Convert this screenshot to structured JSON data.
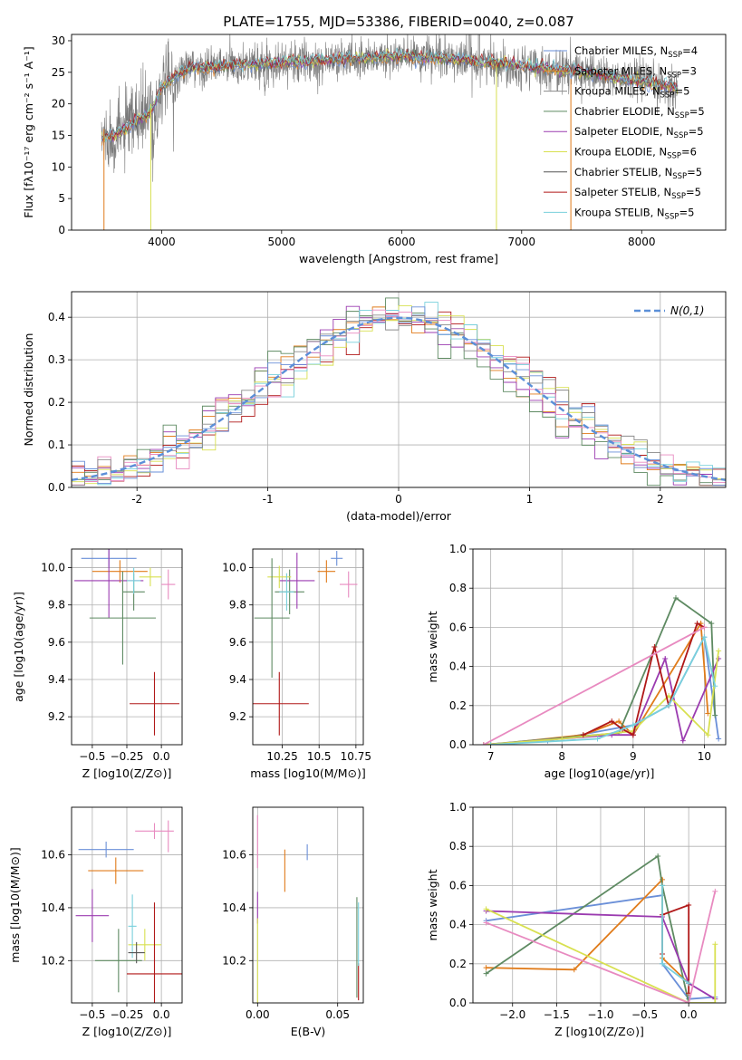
{
  "figure": {
    "title": "PLATE=1755, MJD=53386, FIBERID=0040, z=0.087"
  },
  "palette": [
    "#6a8fd8",
    "#e07b1a",
    "#8a8a8a",
    "#5e8a62",
    "#9b3bb0",
    "#d8e050",
    "#555555",
    "#b01818",
    "#78d0dc",
    "#e88ac0"
  ],
  "chart_data": [
    {
      "id": "spectrum",
      "type": "line",
      "xlabel": "wavelength [Angstrom, rest frame]",
      "ylabel": "Flux [fλ10⁻¹⁷ erg cm⁻² s⁻¹ A⁻¹]",
      "xlim": [
        3250,
        8700
      ],
      "ylim": [
        0,
        31
      ],
      "xticks": [
        4000,
        5000,
        6000,
        7000,
        8000
      ],
      "yticks": [
        0,
        5,
        10,
        15,
        20,
        25,
        30
      ],
      "continuum": {
        "x": [
          3500,
          3600,
          3700,
          3800,
          3900,
          4000,
          4200,
          4500,
          5000,
          5500,
          6000,
          6500,
          7000,
          7500,
          8000,
          8300
        ],
        "y": [
          14.5,
          15.0,
          16.0,
          17.5,
          18.5,
          22.5,
          25.5,
          26.0,
          26.5,
          27.0,
          27.5,
          27.0,
          26.0,
          25.0,
          23.5,
          22.5
        ]
      },
      "legend": [
        {
          "name": "Chabrier MILES, N_SSP=4",
          "color": "#6a8fd8"
        },
        {
          "name": "Salpeter MILES, N_SSP=3",
          "color": "#e07b1a"
        },
        {
          "name": "Kroupa MILES, N_SSP=5",
          "color": "#8a8a8a"
        },
        {
          "name": "Chabrier ELODIE, N_SSP=5",
          "color": "#5e8a62"
        },
        {
          "name": "Salpeter ELODIE, N_SSP=5",
          "color": "#9b3bb0"
        },
        {
          "name": "Kroupa ELODIE, N_SSP=6",
          "color": "#d8e050"
        },
        {
          "name": "Chabrier STELIB, N_SSP=5",
          "color": "#555555"
        },
        {
          "name": "Salpeter STELIB, N_SSP=5",
          "color": "#b01818"
        },
        {
          "name": "Kroupa STELIB, N_SSP=5",
          "color": "#78d0dc"
        }
      ]
    },
    {
      "id": "residuals",
      "type": "histogram",
      "xlabel": "(data-model)/error",
      "ylabel": "Normed distribution",
      "xlim": [
        -2.5,
        2.5
      ],
      "ylim": [
        0,
        0.46
      ],
      "xticks": [
        -2,
        -1,
        0,
        1,
        2
      ],
      "yticks": [
        0.0,
        0.1,
        0.2,
        0.3,
        0.4
      ],
      "bin_width": 0.1,
      "gaussian": {
        "mu": 0,
        "sigma": 1,
        "label": "N(0,1)",
        "color": "#5b8fd8"
      }
    },
    {
      "id": "age-vs-z",
      "type": "errorbar",
      "xlabel": "Z [log10(Z/Z⊙)]",
      "ylabel": "age  [log10(age/yr)]",
      "xlim": [
        -0.65,
        0.15
      ],
      "ylim": [
        9.05,
        10.1
      ],
      "xticks": [
        -0.5,
        -0.25,
        0.0
      ],
      "xticklabels": [
        "−0.5",
        "−0.25",
        "0.0"
      ],
      "yticks": [
        9.2,
        9.4,
        9.6,
        9.8,
        10.0
      ],
      "points": [
        {
          "x": -0.38,
          "xerr": 0.2,
          "y": 10.05,
          "yerr": 0.05,
          "c": "#6a8fd8"
        },
        {
          "x": -0.3,
          "xerr": 0.2,
          "y": 9.98,
          "yerr": 0.06,
          "c": "#e07b1a"
        },
        {
          "x": -0.2,
          "xerr": 0.08,
          "y": 9.87,
          "yerr": 0.1,
          "c": "#5e8a62"
        },
        {
          "x": -0.38,
          "xerr": 0.25,
          "y": 9.93,
          "yerr": 0.2,
          "c": "#9b3bb0"
        },
        {
          "x": -0.08,
          "xerr": 0.08,
          "y": 9.95,
          "yerr": 0.05,
          "c": "#d8e050"
        },
        {
          "x": -0.28,
          "xerr": 0.24,
          "y": 9.73,
          "yerr": 0.25,
          "c": "#5e8a62"
        },
        {
          "x": -0.05,
          "xerr": 0.18,
          "y": 9.27,
          "yerr": 0.17,
          "c": "#b01818"
        },
        {
          "x": -0.2,
          "xerr": 0.05,
          "y": 9.93,
          "yerr": 0.07,
          "c": "#78d0dc"
        },
        {
          "x": 0.05,
          "xerr": 0.05,
          "y": 9.91,
          "yerr": 0.08,
          "c": "#e88ac0"
        }
      ]
    },
    {
      "id": "age-vs-mass",
      "type": "errorbar",
      "xlabel": "mass [log10(M/M⊙)]",
      "xlim": [
        10.05,
        10.8
      ],
      "ylim": [
        9.05,
        10.1
      ],
      "xticks": [
        10.25,
        10.5,
        10.75
      ],
      "yticks": [
        9.2,
        9.4,
        9.6,
        9.8,
        10.0
      ],
      "points": [
        {
          "x": 10.62,
          "xerr": 0.04,
          "y": 10.05,
          "yerr": 0.04,
          "c": "#6a8fd8"
        },
        {
          "x": 10.55,
          "xerr": 0.06,
          "y": 9.98,
          "yerr": 0.06,
          "c": "#e07b1a"
        },
        {
          "x": 10.3,
          "xerr": 0.1,
          "y": 9.87,
          "yerr": 0.12,
          "c": "#5e8a62"
        },
        {
          "x": 10.35,
          "xerr": 0.12,
          "y": 9.93,
          "yerr": 0.15,
          "c": "#9b3bb0"
        },
        {
          "x": 10.23,
          "xerr": 0.08,
          "y": 9.95,
          "yerr": 0.06,
          "c": "#d8e050"
        },
        {
          "x": 10.18,
          "xerr": 0.12,
          "y": 9.73,
          "yerr": 0.32,
          "c": "#5e8a62"
        },
        {
          "x": 10.23,
          "xerr": 0.2,
          "y": 9.27,
          "yerr": 0.17,
          "c": "#b01818"
        },
        {
          "x": 10.28,
          "xerr": 0.05,
          "y": 9.87,
          "yerr": 0.1,
          "c": "#78d0dc"
        },
        {
          "x": 10.7,
          "xerr": 0.06,
          "y": 9.91,
          "yerr": 0.07,
          "c": "#e88ac0"
        }
      ]
    },
    {
      "id": "weight-vs-age",
      "type": "line",
      "xlabel": "age  [log10(age/yr)]",
      "ylabel": "mass weight",
      "xlim": [
        6.75,
        10.3
      ],
      "ylim": [
        0,
        1
      ],
      "xticks": [
        7,
        8,
        9,
        10
      ],
      "yticks": [
        0.0,
        0.2,
        0.4,
        0.6,
        0.8,
        1.0
      ],
      "series": [
        {
          "c": "#6a8fd8",
          "x": [
            7.8,
            9.0,
            9.5,
            10.0,
            10.2
          ],
          "y": [
            0.02,
            0.1,
            0.2,
            0.55,
            0.03
          ]
        },
        {
          "c": "#e07b1a",
          "x": [
            7.0,
            8.3,
            8.8,
            9.0,
            9.95,
            10.05
          ],
          "y": [
            0.0,
            0.05,
            0.12,
            0.05,
            0.62,
            0.16
          ]
        },
        {
          "c": "#5e8a62",
          "x": [
            6.9,
            8.8,
            9.6,
            10.1,
            10.15
          ],
          "y": [
            0.0,
            0.06,
            0.75,
            0.62,
            0.15
          ]
        },
        {
          "c": "#9b3bb0",
          "x": [
            6.9,
            8.7,
            9.0,
            9.45,
            9.7,
            10.2
          ],
          "y": [
            0.0,
            0.05,
            0.05,
            0.44,
            0.02,
            0.44
          ]
        },
        {
          "c": "#d8e050",
          "x": [
            6.9,
            8.0,
            9.0,
            9.5,
            10.05,
            10.2
          ],
          "y": [
            0.0,
            0.03,
            0.07,
            0.25,
            0.05,
            0.48
          ]
        },
        {
          "c": "#b01818",
          "x": [
            8.3,
            8.7,
            8.85,
            9.0,
            9.3,
            9.5,
            9.9,
            10.0
          ],
          "y": [
            0.05,
            0.12,
            0.08,
            0.05,
            0.5,
            0.2,
            0.62,
            0.6
          ]
        },
        {
          "c": "#78d0dc",
          "x": [
            7.0,
            8.5,
            9.0,
            9.5,
            10.0,
            10.15
          ],
          "y": [
            0.0,
            0.03,
            0.1,
            0.2,
            0.55,
            0.3
          ]
        },
        {
          "c": "#e88ac0",
          "x": [
            6.9,
            10.0
          ],
          "y": [
            0.0,
            0.6
          ]
        }
      ]
    },
    {
      "id": "mass-vs-z",
      "type": "errorbar",
      "xlabel": "Z [log10(Z/Z⊙)]",
      "ylabel": "mass [log10(M/M⊙)]",
      "xlim": [
        -0.65,
        0.15
      ],
      "ylim": [
        10.04,
        10.78
      ],
      "xticks": [
        -0.5,
        -0.25,
        0.0
      ],
      "xticklabels": [
        "−0.5",
        "−0.25",
        "0.0"
      ],
      "yticks": [
        10.2,
        10.4,
        10.6
      ],
      "points": [
        {
          "x": -0.4,
          "xerr": 0.2,
          "y": 10.62,
          "yerr": 0.03,
          "c": "#6a8fd8"
        },
        {
          "x": -0.33,
          "xerr": 0.2,
          "y": 10.54,
          "yerr": 0.05,
          "c": "#e07b1a"
        },
        {
          "x": -0.5,
          "xerr": 0.12,
          "y": 10.37,
          "yerr": 0.1,
          "c": "#9b3bb0"
        },
        {
          "x": -0.12,
          "xerr": 0.12,
          "y": 10.26,
          "yerr": 0.06,
          "c": "#d8e050"
        },
        {
          "x": -0.31,
          "xerr": 0.17,
          "y": 10.2,
          "yerr": 0.12,
          "c": "#5e8a62"
        },
        {
          "x": -0.21,
          "xerr": 0.03,
          "y": 10.33,
          "yerr": 0.12,
          "c": "#78d0dc"
        },
        {
          "x": -0.18,
          "xerr": 0.06,
          "y": 10.23,
          "yerr": 0.04,
          "c": "#555555"
        },
        {
          "x": -0.05,
          "xerr": 0.2,
          "y": 10.15,
          "yerr": 0.27,
          "c": "#b01818"
        },
        {
          "x": -0.05,
          "xerr": 0.14,
          "y": 10.69,
          "yerr": 0.03,
          "c": "#e88ac0"
        },
        {
          "x": 0.05,
          "xerr": 0.0,
          "y": 10.67,
          "yerr": 0.06,
          "c": "#e88ac0"
        }
      ]
    },
    {
      "id": "mass-vs-ebv",
      "type": "errorbar",
      "xlabel": "E(B-V)",
      "xlim": [
        -0.003,
        0.066
      ],
      "ylim": [
        10.04,
        10.78
      ],
      "xticks": [
        0.0,
        0.05
      ],
      "xticklabels": [
        "0.00",
        "0.05"
      ],
      "yticks": [
        10.2,
        10.4,
        10.6
      ],
      "points": [
        {
          "x": 0.0,
          "xerr": 0,
          "y": 10.65,
          "yerr": 0.1,
          "c": "#e88ac0"
        },
        {
          "x": 0.0,
          "xerr": 0,
          "y": 10.4,
          "yerr": 0.06,
          "c": "#9b3bb0"
        },
        {
          "x": 0.0,
          "xerr": 0,
          "y": 10.2,
          "yerr": 0.16,
          "c": "#d8e050"
        },
        {
          "x": 0.017,
          "xerr": 0,
          "y": 10.54,
          "yerr": 0.08,
          "c": "#e07b1a"
        },
        {
          "x": 0.031,
          "xerr": 0,
          "y": 10.61,
          "yerr": 0.03,
          "c": "#6a8fd8"
        },
        {
          "x": 0.062,
          "xerr": 0,
          "y": 10.25,
          "yerr": 0.19,
          "c": "#5e8a62"
        },
        {
          "x": 0.063,
          "xerr": 0,
          "y": 10.12,
          "yerr": 0.07,
          "c": "#b01818"
        },
        {
          "x": 0.063,
          "xerr": 0,
          "y": 10.3,
          "yerr": 0.12,
          "c": "#78d0dc"
        }
      ]
    },
    {
      "id": "weight-vs-z",
      "type": "line",
      "xlabel": "Z [log10(Z/Z⊙)]",
      "ylabel": "mass weight",
      "xlim": [
        -2.45,
        0.42
      ],
      "ylim": [
        0,
        1
      ],
      "xticks": [
        -2.0,
        -1.5,
        -1.0,
        -0.5,
        0.0
      ],
      "xticklabels": [
        "−2.0",
        "−1.5",
        "−1.0",
        "−0.5",
        "0.0"
      ],
      "yticks": [
        0.0,
        0.2,
        0.4,
        0.6,
        0.8,
        1.0
      ],
      "series": [
        {
          "c": "#6a8fd8",
          "x": [
            -2.3,
            -0.3,
            -0.3,
            0.0,
            0.3
          ],
          "y": [
            0.42,
            0.55,
            0.2,
            0.02,
            0.03
          ]
        },
        {
          "c": "#e07b1a",
          "x": [
            -2.3,
            -1.3,
            -0.3,
            -0.3,
            0.0
          ],
          "y": [
            0.18,
            0.17,
            0.63,
            0.23,
            0.1
          ]
        },
        {
          "c": "#5e8a62",
          "x": [
            -2.3,
            -0.35,
            -0.3,
            0.0
          ],
          "y": [
            0.15,
            0.75,
            0.6,
            0.0
          ]
        },
        {
          "c": "#9b3bb0",
          "x": [
            -2.3,
            -0.3,
            0.0,
            0.3
          ],
          "y": [
            0.47,
            0.44,
            0.1,
            0.02
          ]
        },
        {
          "c": "#d8e050",
          "x": [
            -2.3,
            0.0,
            0.3,
            0.3
          ],
          "y": [
            0.48,
            0.0,
            0.0,
            0.3
          ]
        },
        {
          "c": "#b01818",
          "x": [
            -0.3,
            -0.3,
            0.0,
            0.0
          ],
          "y": [
            0.25,
            0.45,
            0.5,
            0.05
          ]
        },
        {
          "c": "#78d0dc",
          "x": [
            -0.3,
            -0.3,
            0.0
          ],
          "y": [
            0.6,
            0.2,
            0.1
          ]
        },
        {
          "c": "#e88ac0",
          "x": [
            -2.3,
            0.0,
            0.3
          ],
          "y": [
            0.41,
            0.0,
            0.57
          ]
        }
      ]
    }
  ]
}
